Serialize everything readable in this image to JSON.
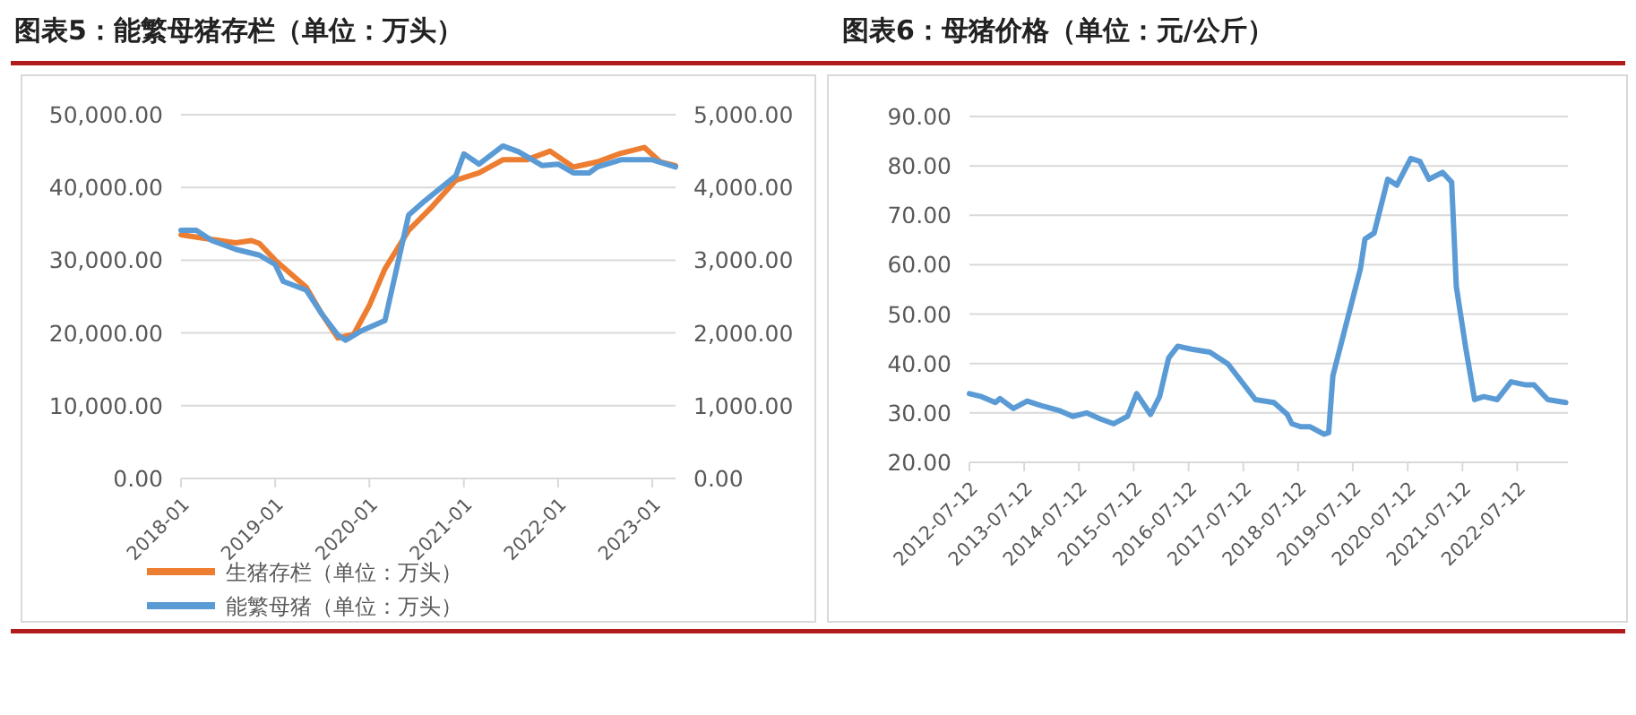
{
  "chart_data": [
    {
      "type": "line",
      "title": "图表5：能繁母猪存栏（单位：万头）",
      "legend": "bottom",
      "grid": "y",
      "xlim": [
        "2018-01",
        "2023-04"
      ],
      "xticks": [
        "2018-01",
        "2019-01",
        "2020-01",
        "2021-01",
        "2022-01",
        "2023-01"
      ],
      "ylim": [
        0,
        50000
      ],
      "yticks": [
        {
          "value": 0,
          "label": "0.00"
        },
        {
          "value": 10000,
          "label": "10,000.00"
        },
        {
          "value": 20000,
          "label": "20,000.00"
        },
        {
          "value": 30000,
          "label": "30,000.00"
        },
        {
          "value": 40000,
          "label": "40,000.00"
        },
        {
          "value": 50000,
          "label": "50,000.00"
        }
      ],
      "y2lim": [
        0,
        5000
      ],
      "y2ticks": [
        {
          "value": 0,
          "label": "0.00"
        },
        {
          "value": 1000,
          "label": "1,000.00"
        },
        {
          "value": 2000,
          "label": "2,000.00"
        },
        {
          "value": 3000,
          "label": "3,000.00"
        },
        {
          "value": 4000,
          "label": "4,000.00"
        },
        {
          "value": 5000,
          "label": "5,000.00"
        }
      ],
      "series": [
        {
          "name": "生猪存栏（单位：万头）",
          "color": "#ed7d31",
          "x": [
            "2018-01",
            "2018-04",
            "2018-06",
            "2018-08",
            "2018-10",
            "2018-11",
            "2019-01",
            "2019-05",
            "2019-07",
            "2019-09",
            "2019-11",
            "2020-01",
            "2020-03",
            "2020-06",
            "2020-09",
            "2020-12",
            "2021-03",
            "2021-06",
            "2021-09",
            "2021-12",
            "2022-03",
            "2022-06",
            "2022-09",
            "2022-12",
            "2023-02",
            "2023-04"
          ],
          "values": [
            33500,
            33000,
            32700,
            32400,
            32700,
            32300,
            30000,
            26300,
            22600,
            19300,
            19800,
            23800,
            28800,
            34100,
            37400,
            41000,
            42000,
            43800,
            43800,
            45000,
            42800,
            43500,
            44700,
            45500,
            43500,
            43000
          ]
        },
        {
          "name": "能繁母猪（单位：万头）",
          "color": "#5b9bd5",
          "axis": "y2",
          "x": [
            "2018-01",
            "2018-03",
            "2018-05",
            "2018-08",
            "2018-11",
            "2019-01",
            "2019-02",
            "2019-05",
            "2019-07",
            "2019-09",
            "2019-10",
            "2019-12",
            "2020-03",
            "2020-06",
            "2020-08",
            "2020-12",
            "2021-01",
            "2021-03",
            "2021-06",
            "2021-08",
            "2021-11",
            "2022-01",
            "2022-03",
            "2022-05",
            "2022-06",
            "2022-09",
            "2023-01",
            "2023-04"
          ],
          "values": [
            3410,
            3410,
            3270,
            3150,
            3070,
            2940,
            2710,
            2590,
            2260,
            1970,
            1900,
            2030,
            2170,
            3620,
            3810,
            4160,
            4460,
            4320,
            4570,
            4490,
            4300,
            4320,
            4200,
            4200,
            4280,
            4380,
            4380,
            4280
          ]
        }
      ]
    },
    {
      "type": "line",
      "title": "图表6：母猪价格（单位：元/公斤）",
      "grid": "y",
      "color": "#5b9bd5",
      "xlim": [
        "2012-07-12",
        "2023-06-15"
      ],
      "xticks": [
        "2012-07-12",
        "2013-07-12",
        "2014-07-12",
        "2015-07-12",
        "2016-07-12",
        "2017-07-12",
        "2018-07-12",
        "2019-07-12",
        "2020-07-12",
        "2021-07-12",
        "2022-07-12"
      ],
      "ylim": [
        20,
        90
      ],
      "yticks": [
        {
          "value": 20,
          "label": "20.00"
        },
        {
          "value": 30,
          "label": "30.00"
        },
        {
          "value": 40,
          "label": "40.00"
        },
        {
          "value": 50,
          "label": "50.00"
        },
        {
          "value": 60,
          "label": "60.00"
        },
        {
          "value": 70,
          "label": "70.00"
        },
        {
          "value": 80,
          "label": "80.00"
        },
        {
          "value": 90,
          "label": "90.00"
        }
      ],
      "x": [
        "2012-07-12",
        "2012-10",
        "2013-01",
        "2013-02",
        "2013-05",
        "2013-08",
        "2013-11",
        "2014-03",
        "2014-06",
        "2014-09",
        "2014-12",
        "2015-03",
        "2015-06",
        "2015-08",
        "2015-11",
        "2016-01",
        "2016-03",
        "2016-05",
        "2016-08",
        "2016-12",
        "2017-04",
        "2017-08",
        "2017-10",
        "2018-02",
        "2018-05",
        "2018-06",
        "2018-08",
        "2018-10",
        "2019-01",
        "2019-02",
        "2019-03",
        "2019-09",
        "2019-10",
        "2019-12",
        "2020-03",
        "2020-05",
        "2020-08",
        "2020-10",
        "2020-12",
        "2021-03",
        "2021-05",
        "2021-06",
        "2021-08",
        "2021-10",
        "2021-12",
        "2022-03",
        "2022-06",
        "2022-09",
        "2022-11",
        "2023-02",
        "2023-06"
      ],
      "values": [
        33.9,
        33.3,
        32.1,
        32.9,
        30.9,
        32.4,
        31.5,
        30.5,
        29.3,
        30.0,
        28.8,
        27.8,
        29.3,
        33.9,
        29.7,
        33.3,
        41.1,
        43.5,
        42.9,
        42.3,
        39.9,
        35.1,
        32.7,
        32.1,
        29.7,
        27.8,
        27.2,
        27.2,
        25.7,
        26.0,
        37.5,
        59.2,
        65.2,
        66.4,
        77.3,
        76.1,
        81.5,
        80.9,
        77.3,
        78.7,
        76.7,
        55.6,
        43.5,
        32.7,
        33.3,
        32.7,
        36.3,
        35.7,
        35.7,
        32.7,
        32.1
      ]
    }
  ]
}
